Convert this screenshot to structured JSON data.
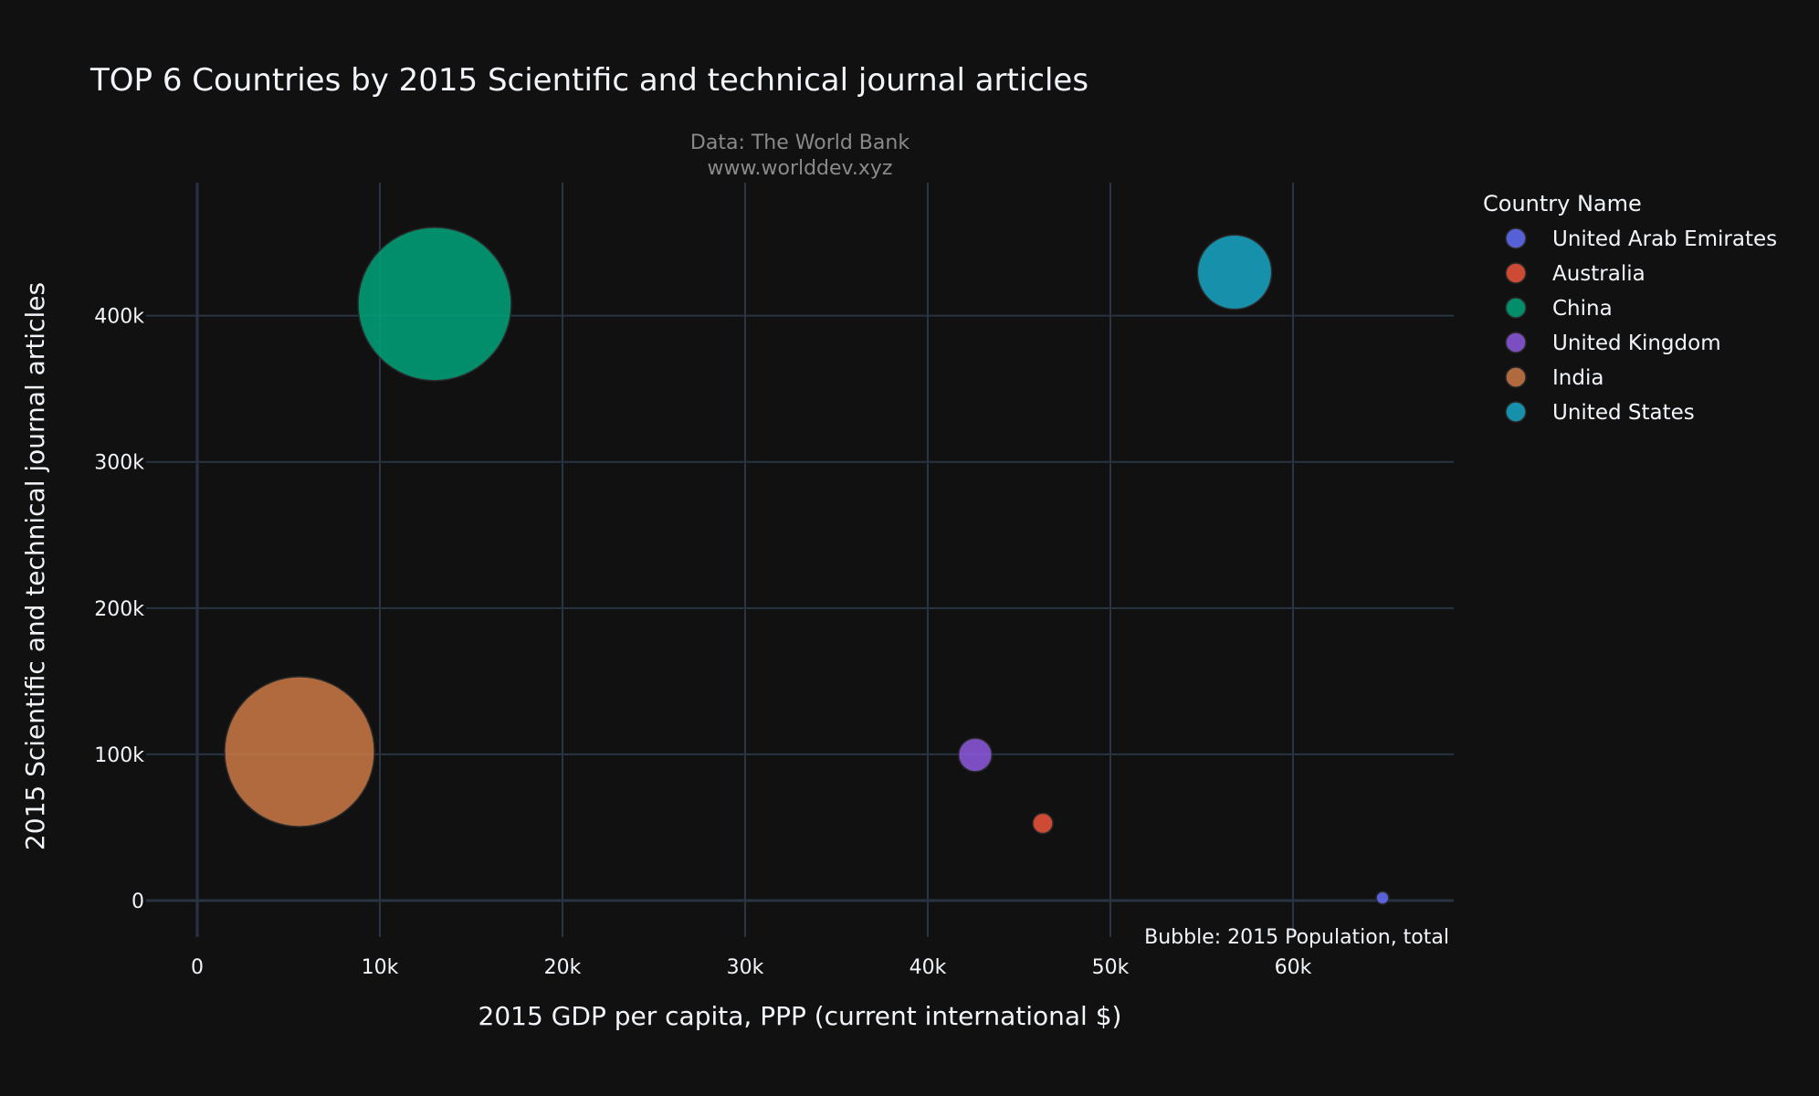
{
  "chart_data": {
    "type": "scatter",
    "title": "TOP 6 Countries by 2015 Scientific and technical journal articles",
    "source_line1": "Data: The World Bank",
    "source_line2": "www.worlddev.xyz",
    "xlabel": "2015 GDP per capita, PPP (current international $)",
    "ylabel": "2015 Scientific and technical journal articles",
    "size_note": "Bubble: 2015 Population, total",
    "legend_title": "Country Name",
    "legend_position": "right",
    "grid": true,
    "xlim": [
      -2800,
      68800
    ],
    "ylim": [
      -25000,
      491000
    ],
    "x_ticks": [
      0,
      10000,
      20000,
      30000,
      40000,
      50000,
      60000
    ],
    "x_tick_labels": [
      "0",
      "10k",
      "20k",
      "30k",
      "40k",
      "50k",
      "60k"
    ],
    "y_ticks": [
      0,
      100000,
      200000,
      300000,
      400000
    ],
    "y_tick_labels": [
      "0",
      "100k",
      "200k",
      "300k",
      "400k"
    ],
    "series": [
      {
        "name": "United Arab Emirates",
        "color": "#636efa",
        "x": 64900,
        "y": 1800,
        "size": 9200000
      },
      {
        "name": "Australia",
        "color": "#ef553b",
        "x": 46300,
        "y": 52800,
        "size": 23800000
      },
      {
        "name": "China",
        "color": "#00a57a",
        "x": 13000,
        "y": 408000,
        "size": 1371000000
      },
      {
        "name": "United Kingdom",
        "color": "#8e5be0",
        "x": 42600,
        "y": 99600,
        "size": 65100000
      },
      {
        "name": "India",
        "color": "#cc7a45",
        "x": 5600,
        "y": 101800,
        "size": 1310000000
      },
      {
        "name": "United States",
        "color": "#19a7c7",
        "x": 56800,
        "y": 429800,
        "size": 321400000
      }
    ]
  }
}
